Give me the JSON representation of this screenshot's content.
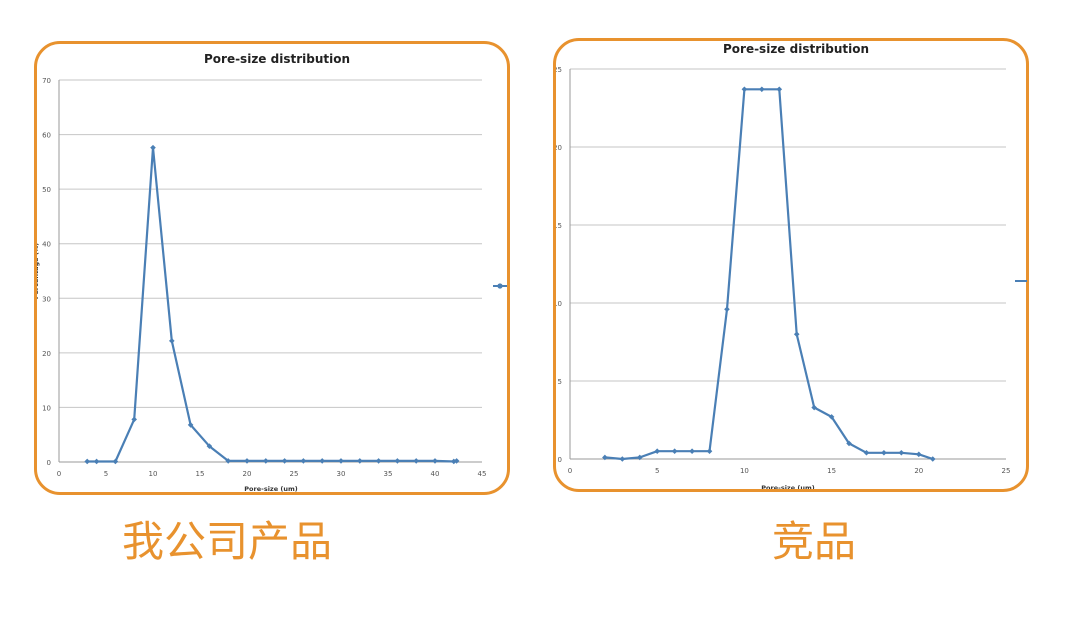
{
  "chart_data": [
    {
      "type": "line",
      "title": "Pore-size distribution",
      "xlabel": "Pore-size (um)",
      "ylabel": "Percentage (%)",
      "xlim": [
        0,
        45
      ],
      "ylim": [
        0,
        70
      ],
      "xticks": [
        "0",
        "5",
        "10",
        "15",
        "20",
        "25",
        "30",
        "35",
        "40",
        "45"
      ],
      "yticks": [
        "0",
        "10",
        "20",
        "30",
        "40",
        "50",
        "60",
        "70"
      ],
      "grid": "horizontal",
      "color": "#4a7fb5",
      "series": [
        {
          "x": [
            3,
            4,
            6,
            8,
            10,
            12,
            14,
            16,
            18,
            20,
            22,
            24,
            26,
            28,
            30,
            32,
            34,
            36,
            38,
            40,
            42,
            42.3
          ],
          "y": [
            0.1,
            0.1,
            0.1,
            7.8,
            57.6,
            22.2,
            6.8,
            2.9,
            0.2,
            0.2,
            0.2,
            0.2,
            0.2,
            0.2,
            0.2,
            0.2,
            0.2,
            0.2,
            0.2,
            0.2,
            0.1,
            0.2
          ]
        }
      ]
    },
    {
      "type": "line",
      "title": "Pore-size distribution",
      "xlabel": "Pore-size (um)",
      "ylabel": "",
      "xlim": [
        0,
        25
      ],
      "ylim": [
        0,
        25
      ],
      "xticks": [
        "0",
        "5",
        "10",
        "15",
        "20",
        "25"
      ],
      "yticks": [
        "0",
        "5",
        "10",
        "15",
        "20",
        "25"
      ],
      "grid": "horizontal",
      "color": "#4a7fb5",
      "series": [
        {
          "x": [
            2,
            3,
            4,
            5,
            6,
            7,
            8,
            9,
            10,
            11,
            12,
            13,
            14,
            15,
            16,
            17,
            18,
            19,
            20,
            20.8
          ],
          "y": [
            0.1,
            0.0,
            0.1,
            0.5,
            0.5,
            0.5,
            0.5,
            9.6,
            23.7,
            23.7,
            23.7,
            8.0,
            3.3,
            2.7,
            1.0,
            0.4,
            0.4,
            0.4,
            0.3,
            0.0
          ]
        }
      ]
    }
  ],
  "captions": {
    "left": "我公司产品",
    "right": "竞品"
  }
}
